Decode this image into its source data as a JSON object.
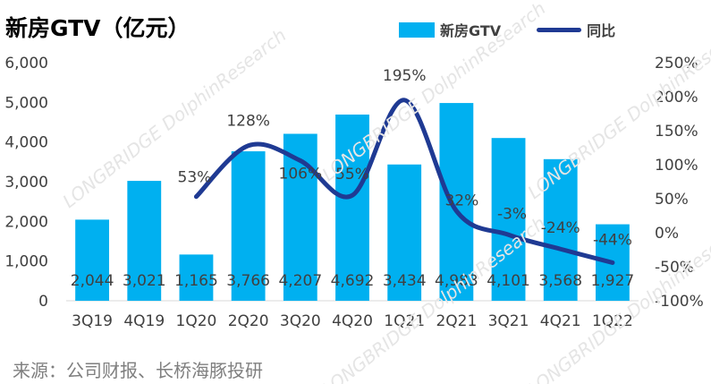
{
  "title": "新房GTV（亿元）",
  "source": "来源：公司财报、长桥海豚投研",
  "watermark": "LONGBRIDGE DolphinResearch",
  "legend": {
    "bar_label": "新房GTV",
    "line_label": "同比"
  },
  "colors": {
    "bar": "#00B0F0",
    "line": "#1F3A93",
    "axis_text": "#404040",
    "label_text": "#404040"
  },
  "chart_data": {
    "type": "bar",
    "categories": [
      "3Q19",
      "4Q19",
      "1Q20",
      "2Q20",
      "3Q20",
      "4Q20",
      "1Q21",
      "2Q21",
      "3Q21",
      "4Q21",
      "1Q22"
    ],
    "series": [
      {
        "name": "新房GTV",
        "type": "bar",
        "axis": "left",
        "values": [
          2044,
          3021,
          1165,
          3766,
          4207,
          4692,
          3434,
          4983,
          4101,
          3568,
          1927
        ],
        "labels": [
          "2,044",
          "3,021",
          "1,165",
          "3,766",
          "4,207",
          "4,692",
          "3,434",
          "4,983",
          "4,101",
          "3,568",
          "1,927"
        ]
      },
      {
        "name": "同比",
        "type": "line",
        "axis": "right",
        "values": [
          null,
          null,
          53,
          128,
          106,
          55,
          195,
          32,
          -3,
          -24,
          -44
        ],
        "labels": [
          "",
          "",
          "53%",
          "128%",
          "106%",
          "55%",
          "195%",
          "32%",
          "-3%",
          "-24%",
          "-44%"
        ]
      }
    ],
    "ylim_left": [
      0,
      6000
    ],
    "yticks_left": [
      "0",
      "1,000",
      "2,000",
      "3,000",
      "4,000",
      "5,000",
      "6,000"
    ],
    "ylim_right": [
      -100,
      250
    ],
    "yticks_right": [
      "-100%",
      "-50%",
      "0%",
      "50%",
      "100%",
      "150%",
      "200%",
      "250%"
    ],
    "grid": false,
    "legend_position": "top-right"
  }
}
